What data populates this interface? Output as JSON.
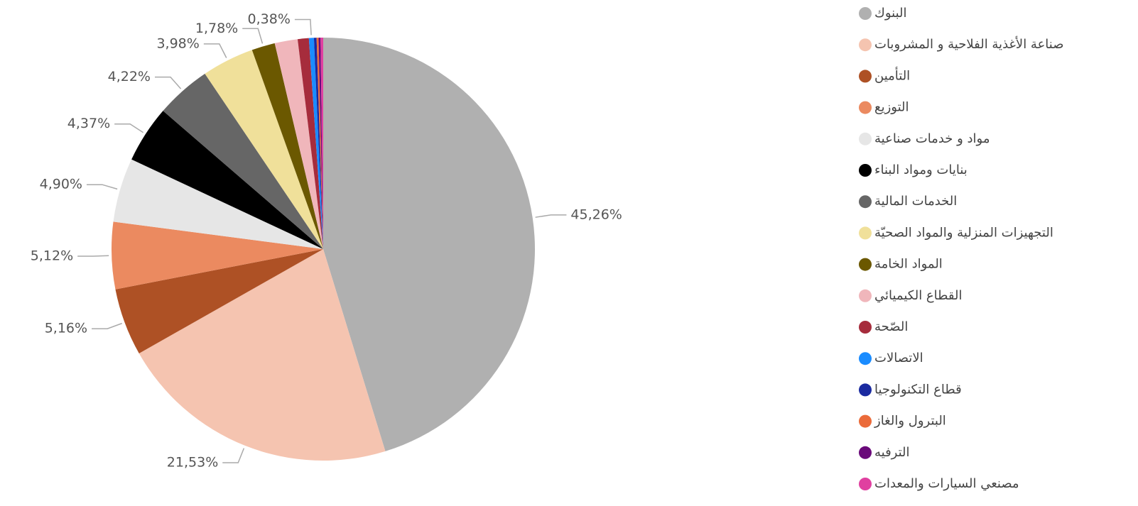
{
  "chart_data": {
    "type": "pie",
    "categories": [
      "البنوك",
      "صناعة الأغذية الفلاحية و المشروبات",
      "التأمين",
      "التوزيع",
      "مواد و خدمات صناعية ",
      "بنايات ومواد البناء",
      "الخدمات المالية",
      "التجهيزات المنزلية والمواد الصحيّة",
      "المواد الخامة",
      "القطاع الكيميائي",
      "الصّحة",
      "الاتصالات",
      "قطاع التكنولوجيا",
      "البترول والغاز",
      "الترفيه",
      "مصنعي السيارات والمعدات"
    ],
    "values": [
      45.26,
      21.53,
      5.16,
      5.12,
      4.9,
      4.37,
      4.22,
      3.98,
      1.78,
      1.75,
      0.85,
      0.38,
      0.2,
      0.15,
      0.15,
      0.2
    ],
    "value_labels": [
      "45,26%",
      "21,53%",
      "5,16%",
      "5,12%",
      "4,90%",
      "4,37%",
      "4,22%",
      "3,98%",
      "1,78%",
      null,
      null,
      "0,38%",
      null,
      null,
      null,
      null
    ],
    "colors": [
      "#b0b0b0",
      "#f5c4b0",
      "#ae5125",
      "#eb8a60",
      "#e6e6e6",
      "#000000",
      "#666666",
      "#f0e09a",
      "#6b5800",
      "#f0b6bb",
      "#a62c3c",
      "#1a8cff",
      "#1a2aa0",
      "#eb6b3a",
      "#6a0a7a",
      "#e040a0"
    ],
    "legend": "right"
  }
}
